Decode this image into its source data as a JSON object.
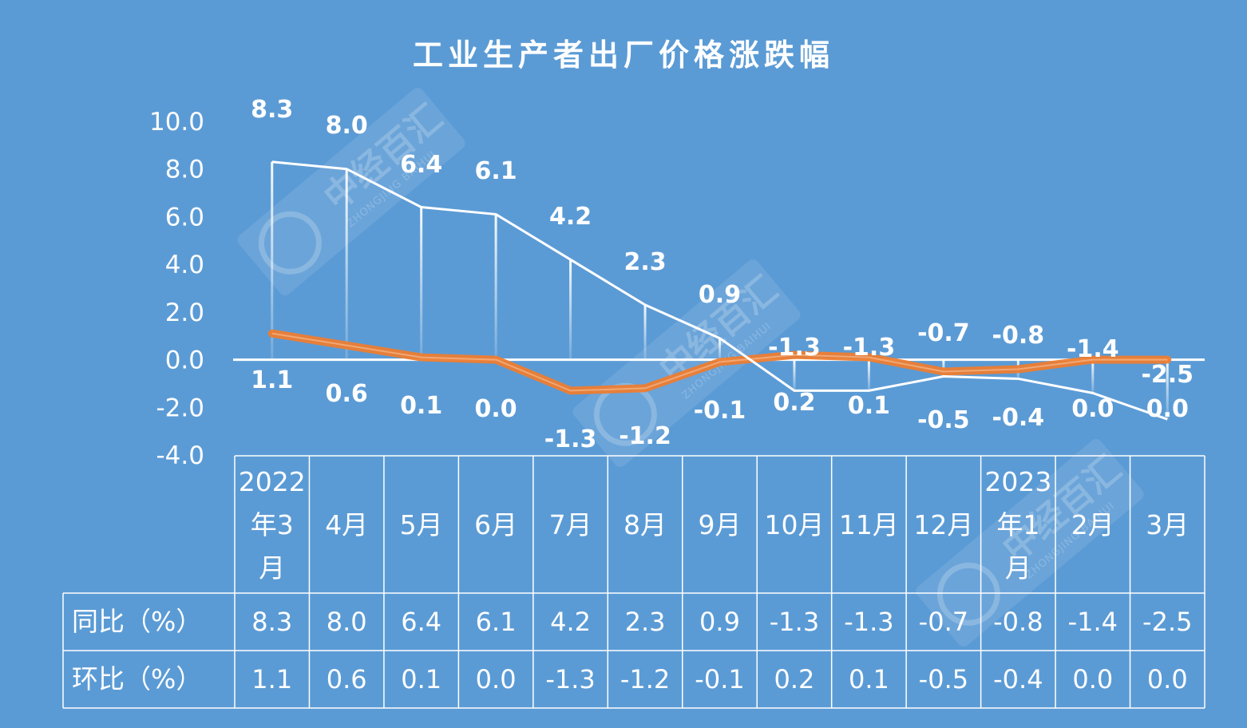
{
  "chart_data": {
    "type": "line",
    "title": "工业生产者出厂价格涨跌幅",
    "categories": [
      "2022年3月",
      "4月",
      "5月",
      "6月",
      "7月",
      "8月",
      "9月",
      "10月",
      "11月",
      "12月",
      "2023年1月",
      "2月",
      "3月"
    ],
    "series": [
      {
        "name": "同比（%）",
        "values": [
          8.3,
          8.0,
          6.4,
          6.1,
          4.2,
          2.3,
          0.9,
          -1.3,
          -1.3,
          -0.7,
          -0.8,
          -1.4,
          -2.5
        ],
        "color": "#ffffff"
      },
      {
        "name": "环比（%）",
        "values": [
          1.1,
          0.6,
          0.1,
          0.0,
          -1.3,
          -1.2,
          -0.1,
          0.2,
          0.1,
          -0.5,
          -0.4,
          0.0,
          0.0
        ],
        "color": "#ed7d31"
      }
    ],
    "yticks": [
      "10.0",
      "8.0",
      "6.0",
      "4.0",
      "2.0",
      "0.0",
      "-2.0",
      "-4.0"
    ],
    "ylim": [
      -4,
      10
    ],
    "grid": false,
    "legend": "data table"
  },
  "watermark": {
    "text": "中经百汇",
    "sub": "ZHONGJING BAIHUI"
  },
  "colors": {
    "background": "#5b9bd5",
    "line_yoy": "#ffffff",
    "line_mom": "#ed7d31"
  }
}
